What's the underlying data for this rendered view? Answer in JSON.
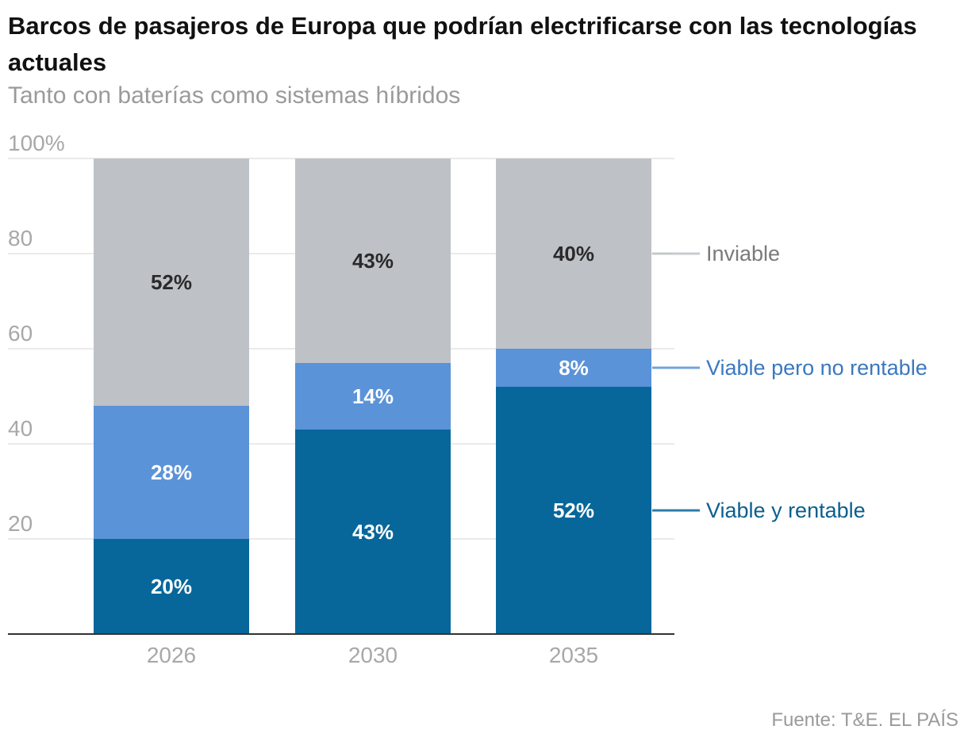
{
  "title": "Barcos de pasajeros de Europa que podrían electrificarse con las tecnologías actuales",
  "subtitle": "Tanto con baterías como sistemas híbridos",
  "source": "Fuente: T&E. EL PAÍS",
  "colors": {
    "inviable": "#bec2c6",
    "viable_no_rentable": "#5b93d8",
    "viable_rentable": "#07679a",
    "legend_inviable_text": "#7a7a7a",
    "legend_no_rentable_text": "#3a78c0",
    "legend_rentable_text": "#0b5f8e",
    "axis_text": "#a8a8a8",
    "grid": "#e4e4e4"
  },
  "chart_data": {
    "type": "bar",
    "stacked": true,
    "title": "Barcos de pasajeros de Europa que podrían electrificarse con las tecnologías actuales",
    "subtitle": "Tanto con baterías como sistemas híbridos",
    "categories": [
      "2026",
      "2030",
      "2035"
    ],
    "series": [
      {
        "name": "Viable y rentable",
        "values": [
          20,
          43,
          52
        ],
        "labels": [
          "20%",
          "43%",
          "52%"
        ],
        "color": "#07679a",
        "legend_color": "#0b5f8e",
        "label_color": "#ffffff"
      },
      {
        "name": "Viable pero no rentable",
        "values": [
          28,
          14,
          8
        ],
        "labels": [
          "28%",
          "14%",
          "8%"
        ],
        "color": "#5b93d8",
        "legend_color": "#3a78c0",
        "label_color": "#ffffff"
      },
      {
        "name": "Inviable",
        "values": [
          52,
          43,
          40
        ],
        "labels": [
          "52%",
          "43%",
          "40%"
        ],
        "color": "#bec2c6",
        "legend_color": "#7a7a7a",
        "label_color": "#2a2a2a"
      }
    ],
    "ylim": [
      0,
      100
    ],
    "yticks": [
      20,
      40,
      60,
      80,
      100
    ],
    "ytick_labels": [
      "20",
      "40",
      "60",
      "80",
      "100%"
    ],
    "xlabel": "",
    "ylabel": "",
    "grid": true,
    "legend": "right, inline labels"
  }
}
